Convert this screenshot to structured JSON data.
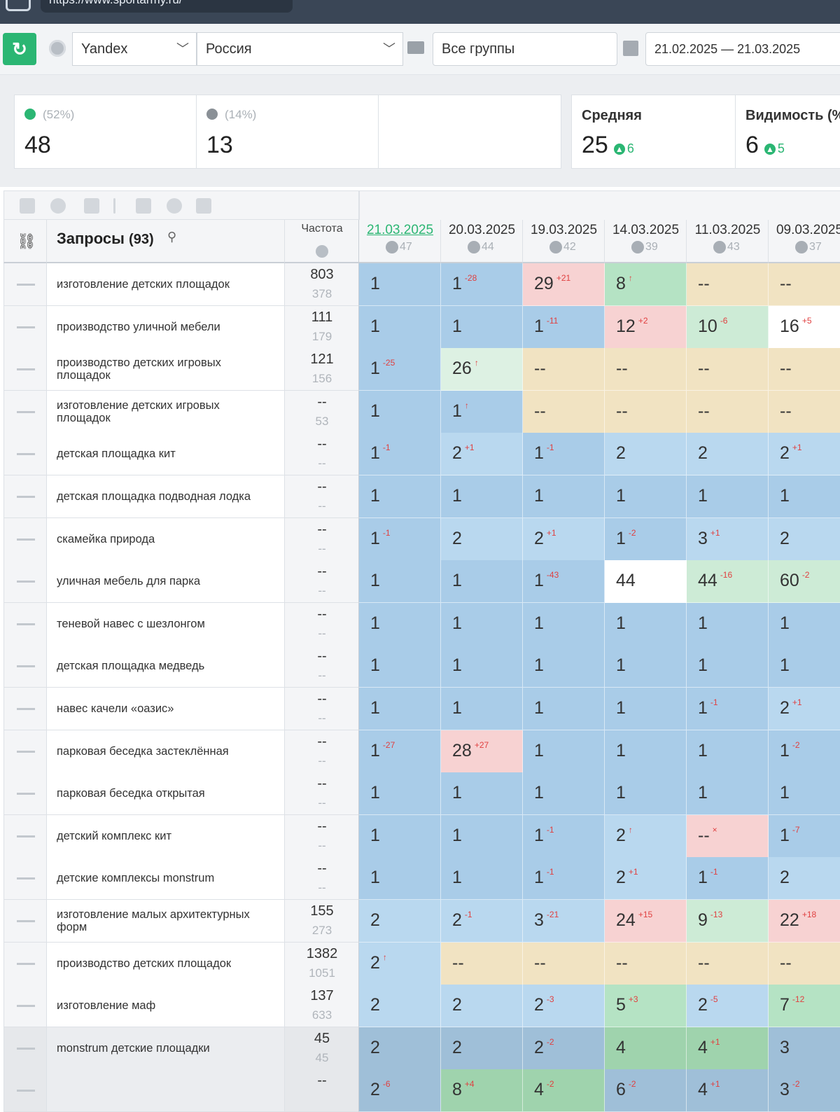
{
  "browser": {
    "url": "https://www.sportarmy.ru/"
  },
  "toolbar": {
    "engine": "Yandex",
    "region": "Россия",
    "group": "Все группы",
    "date_range": "21.02.2025 — 21.03.2025"
  },
  "summary": {
    "cards": [
      {
        "pct": "(52%)",
        "value": "48",
        "status": "up",
        "dot_color": "#2bb673"
      },
      {
        "pct": "(14%)",
        "value": "13",
        "status": "unchanged",
        "dot_color": "#8a9096"
      }
    ],
    "average": {
      "title": "Средняя",
      "value": "25",
      "delta": "6"
    },
    "visibility": {
      "title": "Видимость (%",
      "value": "6",
      "delta": "5"
    }
  },
  "table": {
    "queries_label": "Запросы",
    "queries_count": "(93)",
    "freq_label": "Частота",
    "dates": [
      {
        "date": "21.03.2025",
        "visibility": "47"
      },
      {
        "date": "20.03.2025",
        "visibility": "44"
      },
      {
        "date": "19.03.2025",
        "visibility": "42"
      },
      {
        "date": "14.03.2025",
        "visibility": "39"
      },
      {
        "date": "11.03.2025",
        "visibility": "43"
      },
      {
        "date": "09.03.2025",
        "visibility": "37"
      }
    ],
    "rows": [
      {
        "query": "изготовление детских площадок",
        "freq": "803",
        "freq2": "378",
        "cells": [
          [
            "1",
            "",
            "#a9cce8"
          ],
          [
            "1",
            "-28",
            "#a9cce8"
          ],
          [
            "29",
            "+21",
            "#f7d2d2"
          ],
          [
            "8",
            "↑",
            "#b5e3c4"
          ],
          [
            "--",
            "",
            "#f1e3c2"
          ],
          [
            "--",
            "",
            "#f1e3c2"
          ]
        ]
      },
      {
        "query": "производство уличной мебели",
        "freq": "111",
        "freq2": "179",
        "cells": [
          [
            "1",
            "",
            "#a9cce8"
          ],
          [
            "1",
            "",
            "#a9cce8"
          ],
          [
            "1",
            "-11",
            "#a9cce8"
          ],
          [
            "12",
            "+2",
            "#f7d2d2"
          ],
          [
            "10",
            "-6",
            "#cdebd6"
          ],
          [
            "16",
            "+5",
            "#ffffff"
          ]
        ]
      },
      {
        "query": "производство детских игровых площадок",
        "freq": "121",
        "freq2": "156",
        "cells": [
          [
            "1",
            "-25",
            "#a9cce8"
          ],
          [
            "26",
            "↑",
            "#ddf1e3"
          ],
          [
            "--",
            "",
            "#f1e3c2"
          ],
          [
            "--",
            "",
            "#f1e3c2"
          ],
          [
            "--",
            "",
            "#f1e3c2"
          ],
          [
            "--",
            "",
            "#f1e3c2"
          ]
        ]
      },
      {
        "query": "изготовление детских игровых площадок",
        "freq": "--",
        "freq2": "53",
        "cells": [
          [
            "1",
            "",
            "#a9cce8"
          ],
          [
            "1",
            "↑",
            "#a9cce8"
          ],
          [
            "--",
            "",
            "#f1e3c2"
          ],
          [
            "--",
            "",
            "#f1e3c2"
          ],
          [
            "--",
            "",
            "#f1e3c2"
          ],
          [
            "--",
            "",
            "#f1e3c2"
          ]
        ]
      },
      {
        "query": "детская площадка кит",
        "freq": "--",
        "freq2": "--",
        "cells": [
          [
            "1",
            "-1",
            "#a9cce8"
          ],
          [
            "2",
            "+1",
            "#b9d8ef"
          ],
          [
            "1",
            "-1",
            "#a9cce8"
          ],
          [
            "2",
            "",
            "#b9d8ef"
          ],
          [
            "2",
            "",
            "#b9d8ef"
          ],
          [
            "2",
            "+1",
            "#b9d8ef"
          ]
        ]
      },
      {
        "query": "детская площадка подводная лодка",
        "freq": "--",
        "freq2": "--",
        "cells": [
          [
            "1",
            "",
            "#a9cce8"
          ],
          [
            "1",
            "",
            "#a9cce8"
          ],
          [
            "1",
            "",
            "#a9cce8"
          ],
          [
            "1",
            "",
            "#a9cce8"
          ],
          [
            "1",
            "",
            "#a9cce8"
          ],
          [
            "1",
            "",
            "#a9cce8"
          ]
        ]
      },
      {
        "query": "скамейка природа",
        "freq": "--",
        "freq2": "--",
        "cells": [
          [
            "1",
            "-1",
            "#a9cce8"
          ],
          [
            "2",
            "",
            "#b9d8ef"
          ],
          [
            "2",
            "+1",
            "#b9d8ef"
          ],
          [
            "1",
            "-2",
            "#a9cce8"
          ],
          [
            "3",
            "+1",
            "#b9d8ef"
          ],
          [
            "2",
            "",
            "#b9d8ef"
          ]
        ]
      },
      {
        "query": "уличная мебель для парка",
        "freq": "--",
        "freq2": "--",
        "cells": [
          [
            "1",
            "",
            "#a9cce8"
          ],
          [
            "1",
            "",
            "#a9cce8"
          ],
          [
            "1",
            "-43",
            "#a9cce8"
          ],
          [
            "44",
            "",
            "#ffffff"
          ],
          [
            "44",
            "-16",
            "#cdebd6"
          ],
          [
            "60",
            "-2",
            "#cdebd6"
          ]
        ]
      },
      {
        "query": "теневой навес с шезлонгом",
        "freq": "--",
        "freq2": "--",
        "cells": [
          [
            "1",
            "",
            "#a9cce8"
          ],
          [
            "1",
            "",
            "#a9cce8"
          ],
          [
            "1",
            "",
            "#a9cce8"
          ],
          [
            "1",
            "",
            "#a9cce8"
          ],
          [
            "1",
            "",
            "#a9cce8"
          ],
          [
            "1",
            "",
            "#a9cce8"
          ]
        ]
      },
      {
        "query": "детская площадка медведь",
        "freq": "--",
        "freq2": "--",
        "cells": [
          [
            "1",
            "",
            "#a9cce8"
          ],
          [
            "1",
            "",
            "#a9cce8"
          ],
          [
            "1",
            "",
            "#a9cce8"
          ],
          [
            "1",
            "",
            "#a9cce8"
          ],
          [
            "1",
            "",
            "#a9cce8"
          ],
          [
            "1",
            "",
            "#a9cce8"
          ]
        ]
      },
      {
        "query": "навес качели «оазис»",
        "freq": "--",
        "freq2": "--",
        "cells": [
          [
            "1",
            "",
            "#a9cce8"
          ],
          [
            "1",
            "",
            "#a9cce8"
          ],
          [
            "1",
            "",
            "#a9cce8"
          ],
          [
            "1",
            "",
            "#a9cce8"
          ],
          [
            "1",
            "-1",
            "#a9cce8"
          ],
          [
            "2",
            "+1",
            "#b9d8ef"
          ]
        ]
      },
      {
        "query": "парковая беседка застеклённая",
        "freq": "--",
        "freq2": "--",
        "cells": [
          [
            "1",
            "-27",
            "#a9cce8"
          ],
          [
            "28",
            "+27",
            "#f7d2d2"
          ],
          [
            "1",
            "",
            "#a9cce8"
          ],
          [
            "1",
            "",
            "#a9cce8"
          ],
          [
            "1",
            "",
            "#a9cce8"
          ],
          [
            "1",
            "-2",
            "#a9cce8"
          ]
        ]
      },
      {
        "query": "парковая беседка открытая",
        "freq": "--",
        "freq2": "--",
        "cells": [
          [
            "1",
            "",
            "#a9cce8"
          ],
          [
            "1",
            "",
            "#a9cce8"
          ],
          [
            "1",
            "",
            "#a9cce8"
          ],
          [
            "1",
            "",
            "#a9cce8"
          ],
          [
            "1",
            "",
            "#a9cce8"
          ],
          [
            "1",
            "",
            "#a9cce8"
          ]
        ]
      },
      {
        "query": "детский комплекс кит",
        "freq": "--",
        "freq2": "--",
        "cells": [
          [
            "1",
            "",
            "#a9cce8"
          ],
          [
            "1",
            "",
            "#a9cce8"
          ],
          [
            "1",
            "-1",
            "#a9cce8"
          ],
          [
            "2",
            "↑",
            "#b9d8ef"
          ],
          [
            "--",
            "×",
            "#f7d2d2"
          ],
          [
            "1",
            "-7",
            "#a9cce8"
          ]
        ]
      },
      {
        "query": "детские комплексы monstrum",
        "freq": "--",
        "freq2": "--",
        "cells": [
          [
            "1",
            "",
            "#a9cce8"
          ],
          [
            "1",
            "",
            "#a9cce8"
          ],
          [
            "1",
            "-1",
            "#a9cce8"
          ],
          [
            "2",
            "+1",
            "#b9d8ef"
          ],
          [
            "1",
            "-1",
            "#a9cce8"
          ],
          [
            "2",
            "",
            "#b9d8ef"
          ]
        ]
      },
      {
        "query": "изготовление малых архитектурных форм",
        "freq": "155",
        "freq2": "273",
        "cells": [
          [
            "2",
            "",
            "#b9d8ef"
          ],
          [
            "2",
            "-1",
            "#b9d8ef"
          ],
          [
            "3",
            "-21",
            "#b9d8ef"
          ],
          [
            "24",
            "+15",
            "#f7d2d2"
          ],
          [
            "9",
            "-13",
            "#cdebd6"
          ],
          [
            "22",
            "+18",
            "#f7d2d2"
          ]
        ]
      },
      {
        "query": "производство детских площадок",
        "freq": "1382",
        "freq2": "1051",
        "cells": [
          [
            "2",
            "↑",
            "#b9d8ef"
          ],
          [
            "--",
            "",
            "#f1e3c2"
          ],
          [
            "--",
            "",
            "#f1e3c2"
          ],
          [
            "--",
            "",
            "#f1e3c2"
          ],
          [
            "--",
            "",
            "#f1e3c2"
          ],
          [
            "--",
            "",
            "#f1e3c2"
          ]
        ]
      },
      {
        "query": "изготовление маф",
        "freq": "137",
        "freq2": "633",
        "cells": [
          [
            "2",
            "",
            "#b9d8ef"
          ],
          [
            "2",
            "",
            "#b9d8ef"
          ],
          [
            "2",
            "-3",
            "#b9d8ef"
          ],
          [
            "5",
            "+3",
            "#b5e3c4"
          ],
          [
            "2",
            "-5",
            "#b9d8ef"
          ],
          [
            "7",
            "-12",
            "#b5e3c4"
          ]
        ]
      },
      {
        "query": "monstrum детские площадки",
        "freq": "45",
        "freq2": "45",
        "gray": true,
        "cells": [
          [
            "2",
            "",
            "#9fbfd8"
          ],
          [
            "2",
            "",
            "#9fbfd8"
          ],
          [
            "2",
            "-2",
            "#9fbfd8"
          ],
          [
            "4",
            "",
            "#9fd3ad"
          ],
          [
            "4",
            "+1",
            "#9fd3ad"
          ],
          [
            "3",
            "",
            "#9fbfd8"
          ]
        ]
      },
      {
        "query": "",
        "freq": "--",
        "freq2": "",
        "gray": true,
        "cells": [
          [
            "2",
            "-6",
            "#9fbfd8"
          ],
          [
            "8",
            "+4",
            "#9fd3ad"
          ],
          [
            "4",
            "-2",
            "#9fd3ad"
          ],
          [
            "6",
            "-2",
            "#9fbfd8"
          ],
          [
            "4",
            "+1",
            "#9fbfd8"
          ],
          [
            "3",
            "-2",
            "#9fbfd8"
          ]
        ]
      }
    ]
  }
}
